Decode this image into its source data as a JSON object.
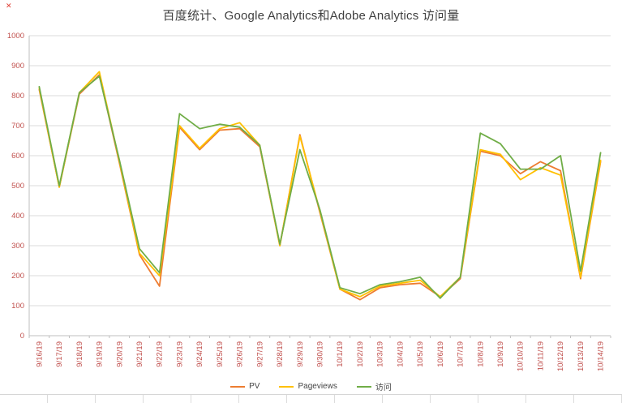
{
  "title": "百度统计、Google Analytics和Adobe Analytics 访问量",
  "close_glyph": "✕",
  "chart_data": {
    "type": "line",
    "title": "百度统计、Google Analytics和Adobe Analytics 访问量",
    "categories": [
      "9/16/19",
      "9/17/19",
      "9/18/19",
      "9/19/19",
      "9/20/19",
      "9/21/19",
      "9/22/19",
      "9/23/19",
      "9/24/19",
      "9/25/19",
      "9/26/19",
      "9/27/19",
      "9/28/19",
      "9/29/19",
      "9/30/19",
      "10/1/19",
      "10/2/19",
      "10/3/19",
      "10/4/19",
      "10/5/19",
      "10/6/19",
      "10/7/19",
      "10/8/19",
      "10/9/19",
      "10/10/19",
      "10/11/19",
      "10/12/19",
      "10/13/19",
      "10/14/19"
    ],
    "series": [
      {
        "name": "PV",
        "color": "#ED7D31",
        "values": [
          820,
          495,
          805,
          870,
          575,
          270,
          165,
          695,
          620,
          685,
          690,
          630,
          300,
          670,
          410,
          155,
          120,
          160,
          170,
          175,
          130,
          190,
          615,
          600,
          540,
          580,
          550,
          190,
          580
        ]
      },
      {
        "name": "Pageviews",
        "color": "#FFC000",
        "values": [
          825,
          495,
          810,
          880,
          580,
          275,
          200,
          700,
          625,
          690,
          710,
          635,
          300,
          665,
          415,
          155,
          130,
          165,
          175,
          185,
          130,
          195,
          620,
          605,
          520,
          560,
          535,
          195,
          585
        ]
      },
      {
        "name": "访问",
        "color": "#70AD47",
        "values": [
          830,
          500,
          810,
          865,
          585,
          290,
          210,
          740,
          690,
          705,
          695,
          635,
          305,
          620,
          420,
          160,
          140,
          170,
          180,
          195,
          125,
          195,
          675,
          640,
          555,
          555,
          600,
          215,
          610
        ]
      }
    ],
    "ylim": [
      0,
      1000
    ],
    "y_ticks": [
      0,
      100,
      200,
      300,
      400,
      500,
      600,
      700,
      800,
      900,
      1000
    ],
    "grid": true,
    "legend_position": "bottom",
    "axis_label_color": "#C0504D",
    "gridline_color": "#DBDBDB",
    "axis_color": "#BFBFBF"
  }
}
